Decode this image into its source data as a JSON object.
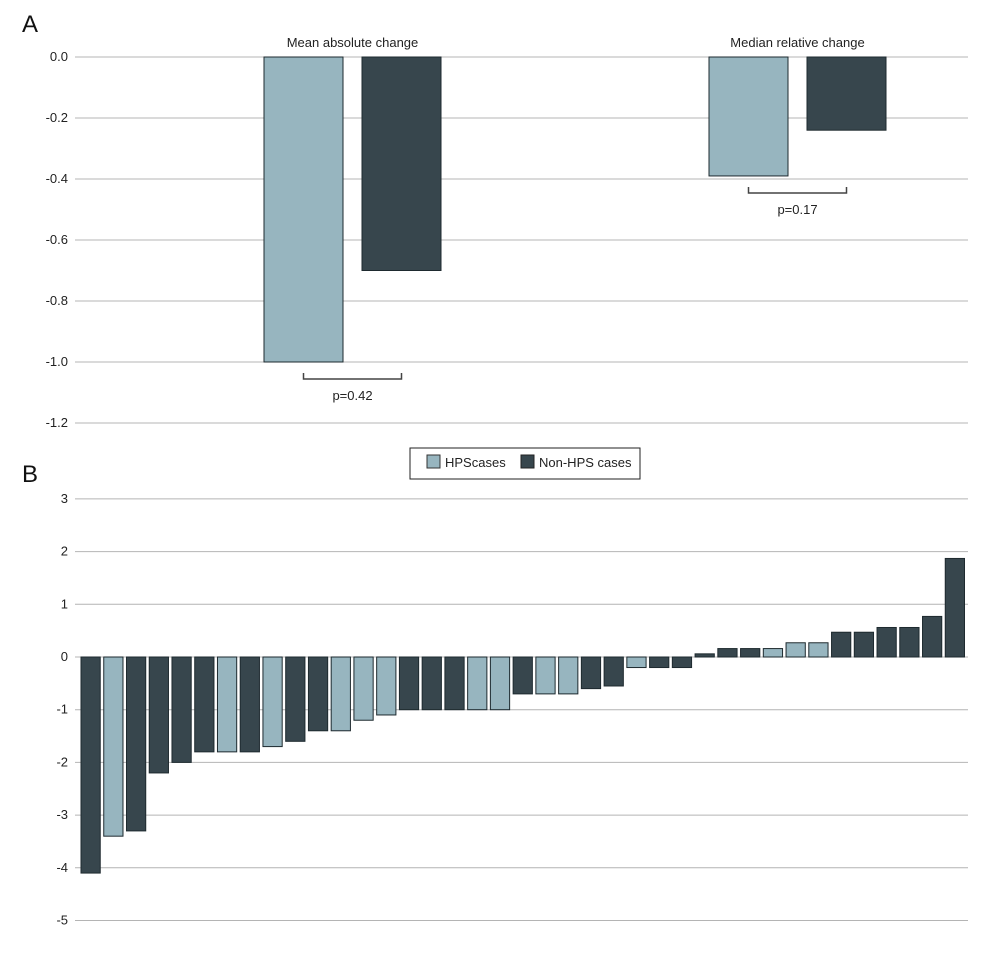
{
  "colors": {
    "hps": "#97b5bf",
    "non_hps": "#37464d",
    "grid": "#b4b4b4"
  },
  "chart_data": [
    {
      "panel_label": "A",
      "type": "bar",
      "groups": [
        "Mean absolute change",
        "Median relative change"
      ],
      "series": [
        {
          "name": "HPScases",
          "values": [
            -1.0,
            -0.39
          ]
        },
        {
          "name": "Non-HPS cases",
          "values": [
            -0.7,
            -0.24
          ]
        }
      ],
      "p_values": [
        "p=0.42",
        "p=0.17"
      ],
      "ylim": [
        -1.2,
        0.0
      ],
      "yticks": [
        "0.0",
        "-0.2",
        "-0.4",
        "-0.6",
        "-0.8",
        "-1.0",
        "-1.2"
      ],
      "grid": true
    },
    {
      "panel_label": "B",
      "type": "bar",
      "legend": {
        "position": "top-center",
        "entries": [
          "HPScases",
          "Non-HPS cases"
        ]
      },
      "ylim": [
        -5,
        3
      ],
      "yticks": [
        "3",
        "2",
        "1",
        "0",
        "-1",
        "-2",
        "-3",
        "-4",
        "-5"
      ],
      "grid": true,
      "bars": [
        {
          "group": "non_hps",
          "value": -4.1
        },
        {
          "group": "hps",
          "value": -3.4
        },
        {
          "group": "non_hps",
          "value": -3.3
        },
        {
          "group": "non_hps",
          "value": -2.2
        },
        {
          "group": "non_hps",
          "value": -2.0
        },
        {
          "group": "non_hps",
          "value": -1.8
        },
        {
          "group": "hps",
          "value": -1.8
        },
        {
          "group": "non_hps",
          "value": -1.8
        },
        {
          "group": "hps",
          "value": -1.7
        },
        {
          "group": "non_hps",
          "value": -1.6
        },
        {
          "group": "non_hps",
          "value": -1.4
        },
        {
          "group": "hps",
          "value": -1.4
        },
        {
          "group": "hps",
          "value": -1.2
        },
        {
          "group": "hps",
          "value": -1.1
        },
        {
          "group": "non_hps",
          "value": -1.0
        },
        {
          "group": "non_hps",
          "value": -1.0
        },
        {
          "group": "non_hps",
          "value": -1.0
        },
        {
          "group": "hps",
          "value": -1.0
        },
        {
          "group": "hps",
          "value": -1.0
        },
        {
          "group": "non_hps",
          "value": -0.7
        },
        {
          "group": "hps",
          "value": -0.7
        },
        {
          "group": "hps",
          "value": -0.7
        },
        {
          "group": "non_hps",
          "value": -0.6
        },
        {
          "group": "non_hps",
          "value": -0.55
        },
        {
          "group": "hps",
          "value": -0.2
        },
        {
          "group": "non_hps",
          "value": -0.2
        },
        {
          "group": "non_hps",
          "value": -0.2
        },
        {
          "group": "non_hps",
          "value": 0.06
        },
        {
          "group": "non_hps",
          "value": 0.16
        },
        {
          "group": "non_hps",
          "value": 0.16
        },
        {
          "group": "hps",
          "value": 0.16
        },
        {
          "group": "hps",
          "value": 0.27
        },
        {
          "group": "hps",
          "value": 0.27
        },
        {
          "group": "non_hps",
          "value": 0.47
        },
        {
          "group": "non_hps",
          "value": 0.47
        },
        {
          "group": "non_hps",
          "value": 0.56
        },
        {
          "group": "non_hps",
          "value": 0.56
        },
        {
          "group": "non_hps",
          "value": 0.77
        },
        {
          "group": "non_hps",
          "value": 1.87
        }
      ]
    }
  ]
}
